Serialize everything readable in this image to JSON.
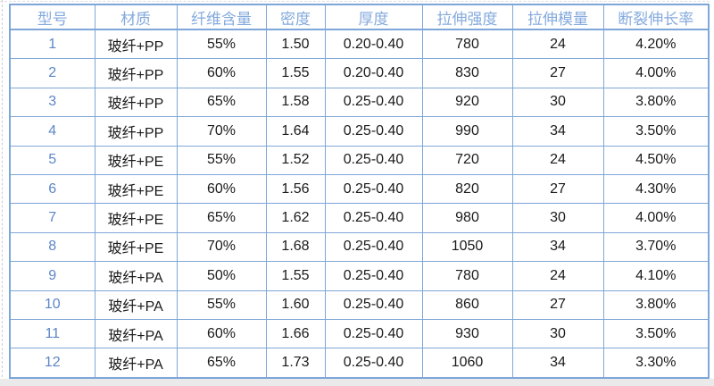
{
  "colors": {
    "table_border": "#7ea6d8",
    "header_text": "#84aadd",
    "row_number_text": "#5c86c8",
    "body_text": "#1a1a1a",
    "sheet_band": "#eaeaea"
  },
  "chart_data": {
    "type": "table",
    "columns": [
      "型号",
      "材质",
      "纤维含量",
      "密度",
      "厚度",
      "拉伸强度",
      "拉伸模量",
      "断裂伸长率"
    ],
    "rows": [
      [
        "1",
        "玻纤+PP",
        "55%",
        "1.50",
        "0.20-0.40",
        "780",
        "24",
        "4.20%"
      ],
      [
        "2",
        "玻纤+PP",
        "60%",
        "1.55",
        "0.20-0.40",
        "830",
        "27",
        "4.00%"
      ],
      [
        "3",
        "玻纤+PP",
        "65%",
        "1.58",
        "0.25-0.40",
        "920",
        "30",
        "3.80%"
      ],
      [
        "4",
        "玻纤+PP",
        "70%",
        "1.64",
        "0.25-0.40",
        "990",
        "34",
        "3.50%"
      ],
      [
        "5",
        "玻纤+PE",
        "55%",
        "1.52",
        "0.25-0.40",
        "720",
        "24",
        "4.50%"
      ],
      [
        "6",
        "玻纤+PE",
        "60%",
        "1.56",
        "0.25-0.40",
        "820",
        "27",
        "4.30%"
      ],
      [
        "7",
        "玻纤+PE",
        "65%",
        "1.62",
        "0.25-0.40",
        "980",
        "30",
        "4.00%"
      ],
      [
        "8",
        "玻纤+PE",
        "70%",
        "1.68",
        "0.25-0.40",
        "1050",
        "34",
        "3.70%"
      ],
      [
        "9",
        "玻纤+PA",
        "50%",
        "1.55",
        "0.25-0.40",
        "780",
        "24",
        "4.10%"
      ],
      [
        "10",
        "玻纤+PA",
        "55%",
        "1.60",
        "0.25-0.40",
        "860",
        "27",
        "3.80%"
      ],
      [
        "11",
        "玻纤+PA",
        "60%",
        "1.66",
        "0.25-0.40",
        "930",
        "30",
        "3.50%"
      ],
      [
        "12",
        "玻纤+PA",
        "65%",
        "1.73",
        "0.25-0.40",
        "1060",
        "34",
        "3.30%"
      ]
    ]
  }
}
